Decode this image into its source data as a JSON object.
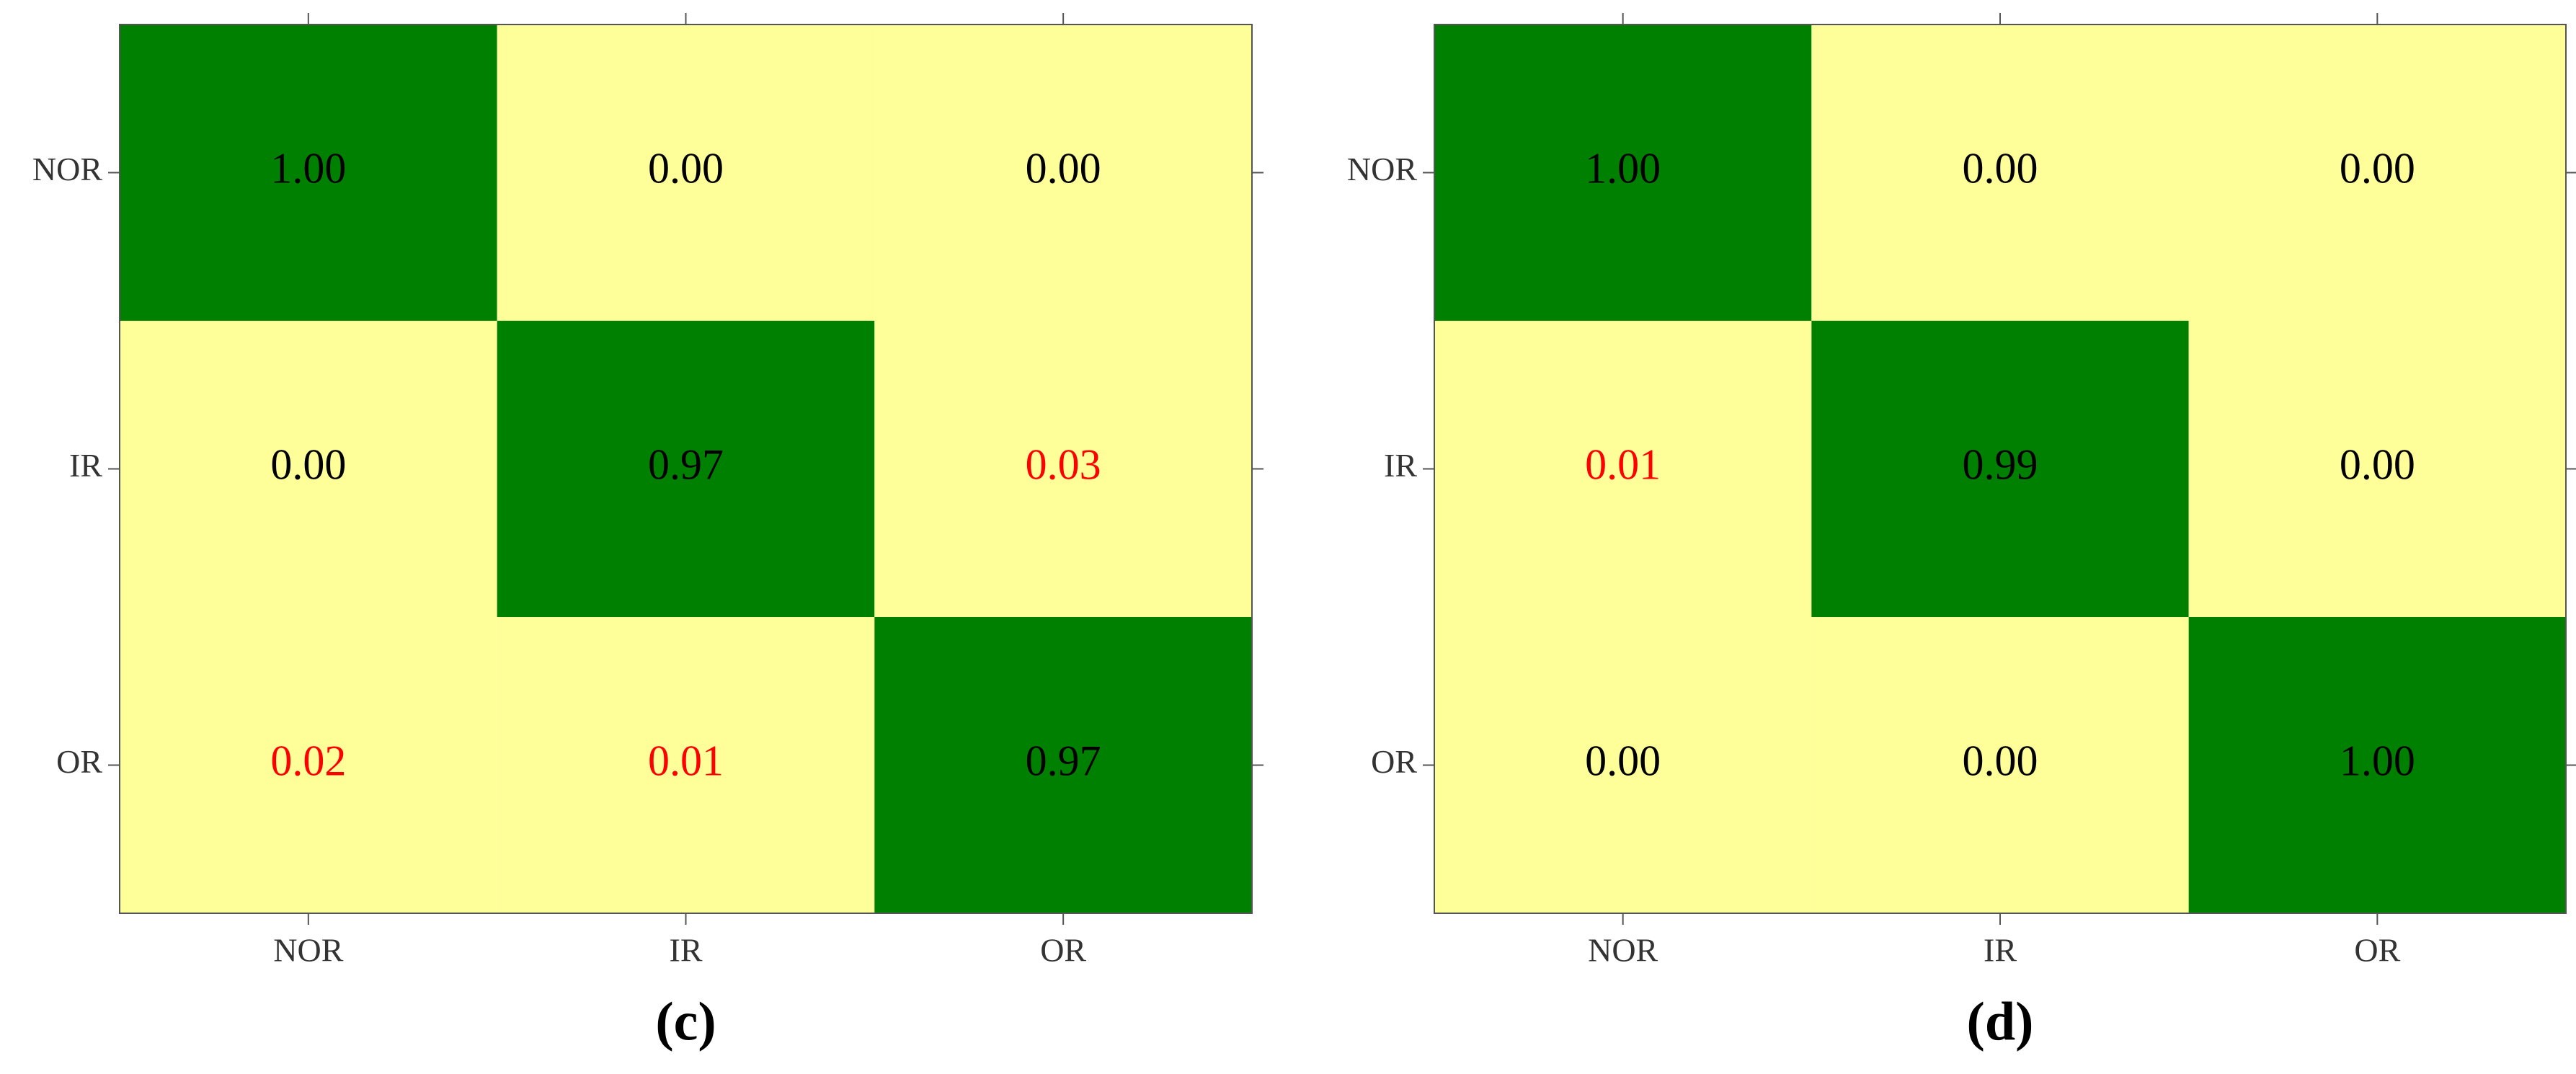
{
  "chart_data": [
    {
      "type": "heatmap",
      "caption": "(c)",
      "rows": [
        "NOR",
        "IR",
        "OR"
      ],
      "columns": [
        "NOR",
        "IR",
        "OR"
      ],
      "values": [
        [
          1.0,
          0.0,
          0.0
        ],
        [
          0.0,
          0.97,
          0.03
        ],
        [
          0.02,
          0.01,
          0.97
        ]
      ],
      "value_labels": [
        [
          "1.00",
          "0.00",
          "0.00"
        ],
        [
          "0.00",
          "0.97",
          "0.03"
        ],
        [
          "0.02",
          "0.01",
          "0.97"
        ]
      ],
      "diagonal_color": "#008000",
      "off_diagonal_color": "#ffff99",
      "text_color": "#000000",
      "error_text_color": "#ff0000"
    },
    {
      "type": "heatmap",
      "caption": "(d)",
      "rows": [
        "NOR",
        "IR",
        "OR"
      ],
      "columns": [
        "NOR",
        "IR",
        "OR"
      ],
      "values": [
        [
          1.0,
          0.0,
          0.0
        ],
        [
          0.01,
          0.99,
          0.0
        ],
        [
          0.0,
          0.0,
          1.0
        ]
      ],
      "value_labels": [
        [
          "1.00",
          "0.00",
          "0.00"
        ],
        [
          "0.01",
          "0.99",
          "0.00"
        ],
        [
          "0.00",
          "0.00",
          "1.00"
        ]
      ],
      "diagonal_color": "#008000",
      "off_diagonal_color": "#ffff99",
      "text_color": "#000000",
      "error_text_color": "#ff0000"
    }
  ]
}
